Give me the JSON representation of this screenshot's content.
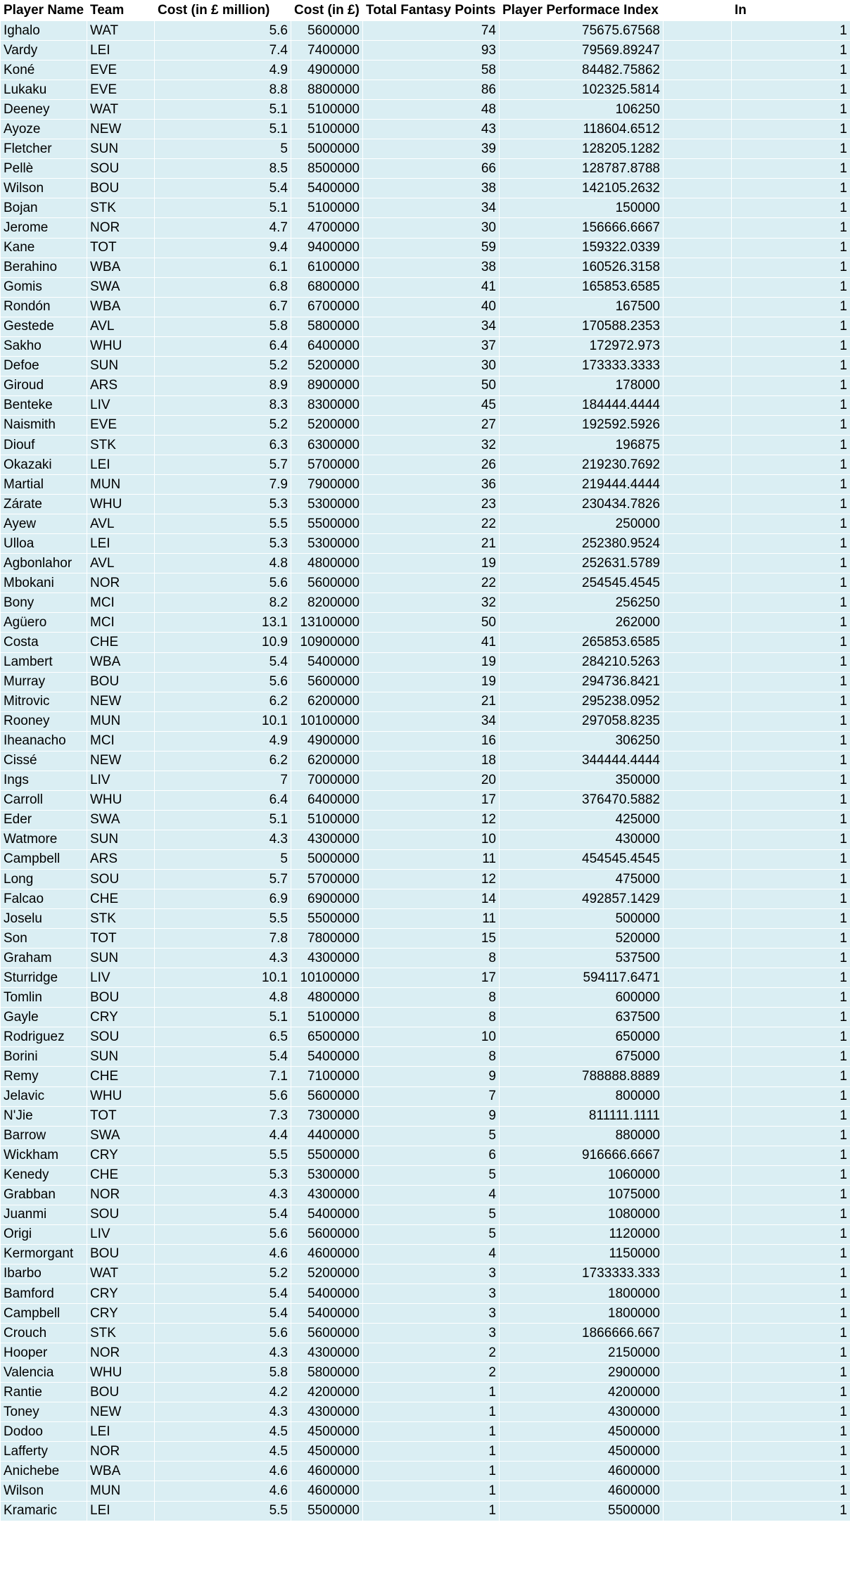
{
  "sheet": {
    "headers": [
      "Player Name",
      "Team",
      "Cost (in £ million)",
      "Cost (in £)",
      "Total Fantasy Points",
      "Player Performace Index",
      "",
      "In"
    ],
    "rows": [
      [
        "Ighalo",
        "WAT",
        "5.6",
        "5600000",
        "74",
        "75675.67568",
        "",
        "1"
      ],
      [
        "Vardy",
        "LEI",
        "7.4",
        "7400000",
        "93",
        "79569.89247",
        "",
        "1"
      ],
      [
        "Koné",
        "EVE",
        "4.9",
        "4900000",
        "58",
        "84482.75862",
        "",
        "1"
      ],
      [
        "Lukaku",
        "EVE",
        "8.8",
        "8800000",
        "86",
        "102325.5814",
        "",
        "1"
      ],
      [
        "Deeney",
        "WAT",
        "5.1",
        "5100000",
        "48",
        "106250",
        "",
        "1"
      ],
      [
        "Ayoze",
        "NEW",
        "5.1",
        "5100000",
        "43",
        "118604.6512",
        "",
        "1"
      ],
      [
        "Fletcher",
        "SUN",
        "5",
        "5000000",
        "39",
        "128205.1282",
        "",
        "1"
      ],
      [
        "Pellè",
        "SOU",
        "8.5",
        "8500000",
        "66",
        "128787.8788",
        "",
        "1"
      ],
      [
        "Wilson",
        "BOU",
        "5.4",
        "5400000",
        "38",
        "142105.2632",
        "",
        "1"
      ],
      [
        "Bojan",
        "STK",
        "5.1",
        "5100000",
        "34",
        "150000",
        "",
        "1"
      ],
      [
        "Jerome",
        "NOR",
        "4.7",
        "4700000",
        "30",
        "156666.6667",
        "",
        "1"
      ],
      [
        "Kane",
        "TOT",
        "9.4",
        "9400000",
        "59",
        "159322.0339",
        "",
        "1"
      ],
      [
        "Berahino",
        "WBA",
        "6.1",
        "6100000",
        "38",
        "160526.3158",
        "",
        "1"
      ],
      [
        "Gomis",
        "SWA",
        "6.8",
        "6800000",
        "41",
        "165853.6585",
        "",
        "1"
      ],
      [
        "Rondón",
        "WBA",
        "6.7",
        "6700000",
        "40",
        "167500",
        "",
        "1"
      ],
      [
        "Gestede",
        "AVL",
        "5.8",
        "5800000",
        "34",
        "170588.2353",
        "",
        "1"
      ],
      [
        "Sakho",
        "WHU",
        "6.4",
        "6400000",
        "37",
        "172972.973",
        "",
        "1"
      ],
      [
        "Defoe",
        "SUN",
        "5.2",
        "5200000",
        "30",
        "173333.3333",
        "",
        "1"
      ],
      [
        "Giroud",
        "ARS",
        "8.9",
        "8900000",
        "50",
        "178000",
        "",
        "1"
      ],
      [
        "Benteke",
        "LIV",
        "8.3",
        "8300000",
        "45",
        "184444.4444",
        "",
        "1"
      ],
      [
        "Naismith",
        "EVE",
        "5.2",
        "5200000",
        "27",
        "192592.5926",
        "",
        "1"
      ],
      [
        "Diouf",
        "STK",
        "6.3",
        "6300000",
        "32",
        "196875",
        "",
        "1"
      ],
      [
        "Okazaki",
        "LEI",
        "5.7",
        "5700000",
        "26",
        "219230.7692",
        "",
        "1"
      ],
      [
        "Martial",
        "MUN",
        "7.9",
        "7900000",
        "36",
        "219444.4444",
        "",
        "1"
      ],
      [
        "Zárate",
        "WHU",
        "5.3",
        "5300000",
        "23",
        "230434.7826",
        "",
        "1"
      ],
      [
        "Ayew",
        "AVL",
        "5.5",
        "5500000",
        "22",
        "250000",
        "",
        "1"
      ],
      [
        "Ulloa",
        "LEI",
        "5.3",
        "5300000",
        "21",
        "252380.9524",
        "",
        "1"
      ],
      [
        "Agbonlahor",
        "AVL",
        "4.8",
        "4800000",
        "19",
        "252631.5789",
        "",
        "1"
      ],
      [
        "Mbokani",
        "NOR",
        "5.6",
        "5600000",
        "22",
        "254545.4545",
        "",
        "1"
      ],
      [
        "Bony",
        "MCI",
        "8.2",
        "8200000",
        "32",
        "256250",
        "",
        "1"
      ],
      [
        "Agüero",
        "MCI",
        "13.1",
        "13100000",
        "50",
        "262000",
        "",
        "1"
      ],
      [
        "Costa",
        "CHE",
        "10.9",
        "10900000",
        "41",
        "265853.6585",
        "",
        "1"
      ],
      [
        "Lambert",
        "WBA",
        "5.4",
        "5400000",
        "19",
        "284210.5263",
        "",
        "1"
      ],
      [
        "Murray",
        "BOU",
        "5.6",
        "5600000",
        "19",
        "294736.8421",
        "",
        "1"
      ],
      [
        "Mitrovic",
        "NEW",
        "6.2",
        "6200000",
        "21",
        "295238.0952",
        "",
        "1"
      ],
      [
        "Rooney",
        "MUN",
        "10.1",
        "10100000",
        "34",
        "297058.8235",
        "",
        "1"
      ],
      [
        "Iheanacho",
        "MCI",
        "4.9",
        "4900000",
        "16",
        "306250",
        "",
        "1"
      ],
      [
        "Cissé",
        "NEW",
        "6.2",
        "6200000",
        "18",
        "344444.4444",
        "",
        "1"
      ],
      [
        "Ings",
        "LIV",
        "7",
        "7000000",
        "20",
        "350000",
        "",
        "1"
      ],
      [
        "Carroll",
        "WHU",
        "6.4",
        "6400000",
        "17",
        "376470.5882",
        "",
        "1"
      ],
      [
        "Eder",
        "SWA",
        "5.1",
        "5100000",
        "12",
        "425000",
        "",
        "1"
      ],
      [
        "Watmore",
        "SUN",
        "4.3",
        "4300000",
        "10",
        "430000",
        "",
        "1"
      ],
      [
        "Campbell",
        "ARS",
        "5",
        "5000000",
        "11",
        "454545.4545",
        "",
        "1"
      ],
      [
        "Long",
        "SOU",
        "5.7",
        "5700000",
        "12",
        "475000",
        "",
        "1"
      ],
      [
        "Falcao",
        "CHE",
        "6.9",
        "6900000",
        "14",
        "492857.1429",
        "",
        "1"
      ],
      [
        "Joselu",
        "STK",
        "5.5",
        "5500000",
        "11",
        "500000",
        "",
        "1"
      ],
      [
        "Son",
        "TOT",
        "7.8",
        "7800000",
        "15",
        "520000",
        "",
        "1"
      ],
      [
        "Graham",
        "SUN",
        "4.3",
        "4300000",
        "8",
        "537500",
        "",
        "1"
      ],
      [
        "Sturridge",
        "LIV",
        "10.1",
        "10100000",
        "17",
        "594117.6471",
        "",
        "1"
      ],
      [
        "Tomlin",
        "BOU",
        "4.8",
        "4800000",
        "8",
        "600000",
        "",
        "1"
      ],
      [
        "Gayle",
        "CRY",
        "5.1",
        "5100000",
        "8",
        "637500",
        "",
        "1"
      ],
      [
        "Rodriguez",
        "SOU",
        "6.5",
        "6500000",
        "10",
        "650000",
        "",
        "1"
      ],
      [
        "Borini",
        "SUN",
        "5.4",
        "5400000",
        "8",
        "675000",
        "",
        "1"
      ],
      [
        "Remy",
        "CHE",
        "7.1",
        "7100000",
        "9",
        "788888.8889",
        "",
        "1"
      ],
      [
        "Jelavic",
        "WHU",
        "5.6",
        "5600000",
        "7",
        "800000",
        "",
        "1"
      ],
      [
        "N'Jie",
        "TOT",
        "7.3",
        "7300000",
        "9",
        "811111.1111",
        "",
        "1"
      ],
      [
        "Barrow",
        "SWA",
        "4.4",
        "4400000",
        "5",
        "880000",
        "",
        "1"
      ],
      [
        "Wickham",
        "CRY",
        "5.5",
        "5500000",
        "6",
        "916666.6667",
        "",
        "1"
      ],
      [
        "Kenedy",
        "CHE",
        "5.3",
        "5300000",
        "5",
        "1060000",
        "",
        "1"
      ],
      [
        "Grabban",
        "NOR",
        "4.3",
        "4300000",
        "4",
        "1075000",
        "",
        "1"
      ],
      [
        "Juanmi",
        "SOU",
        "5.4",
        "5400000",
        "5",
        "1080000",
        "",
        "1"
      ],
      [
        "Origi",
        "LIV",
        "5.6",
        "5600000",
        "5",
        "1120000",
        "",
        "1"
      ],
      [
        "Kermorgant",
        "BOU",
        "4.6",
        "4600000",
        "4",
        "1150000",
        "",
        "1"
      ],
      [
        "Ibarbo",
        "WAT",
        "5.2",
        "5200000",
        "3",
        "1733333.333",
        "",
        "1"
      ],
      [
        "Bamford",
        "CRY",
        "5.4",
        "5400000",
        "3",
        "1800000",
        "",
        "1"
      ],
      [
        "Campbell",
        "CRY",
        "5.4",
        "5400000",
        "3",
        "1800000",
        "",
        "1"
      ],
      [
        "Crouch",
        "STK",
        "5.6",
        "5600000",
        "3",
        "1866666.667",
        "",
        "1"
      ],
      [
        "Hooper",
        "NOR",
        "4.3",
        "4300000",
        "2",
        "2150000",
        "",
        "1"
      ],
      [
        "Valencia",
        "WHU",
        "5.8",
        "5800000",
        "2",
        "2900000",
        "",
        "1"
      ],
      [
        "Rantie",
        "BOU",
        "4.2",
        "4200000",
        "1",
        "4200000",
        "",
        "1"
      ],
      [
        "Toney",
        "NEW",
        "4.3",
        "4300000",
        "1",
        "4300000",
        "",
        "1"
      ],
      [
        "Dodoo",
        "LEI",
        "4.5",
        "4500000",
        "1",
        "4500000",
        "",
        "1"
      ],
      [
        "Lafferty",
        "NOR",
        "4.5",
        "4500000",
        "1",
        "4500000",
        "",
        "1"
      ],
      [
        "Anichebe",
        "WBA",
        "4.6",
        "4600000",
        "1",
        "4600000",
        "",
        "1"
      ],
      [
        "Wilson",
        "MUN",
        "4.6",
        "4600000",
        "1",
        "4600000",
        "",
        "1"
      ],
      [
        "Kramaric",
        "LEI",
        "5.5",
        "5500000",
        "1",
        "5500000",
        "",
        "1"
      ]
    ]
  }
}
